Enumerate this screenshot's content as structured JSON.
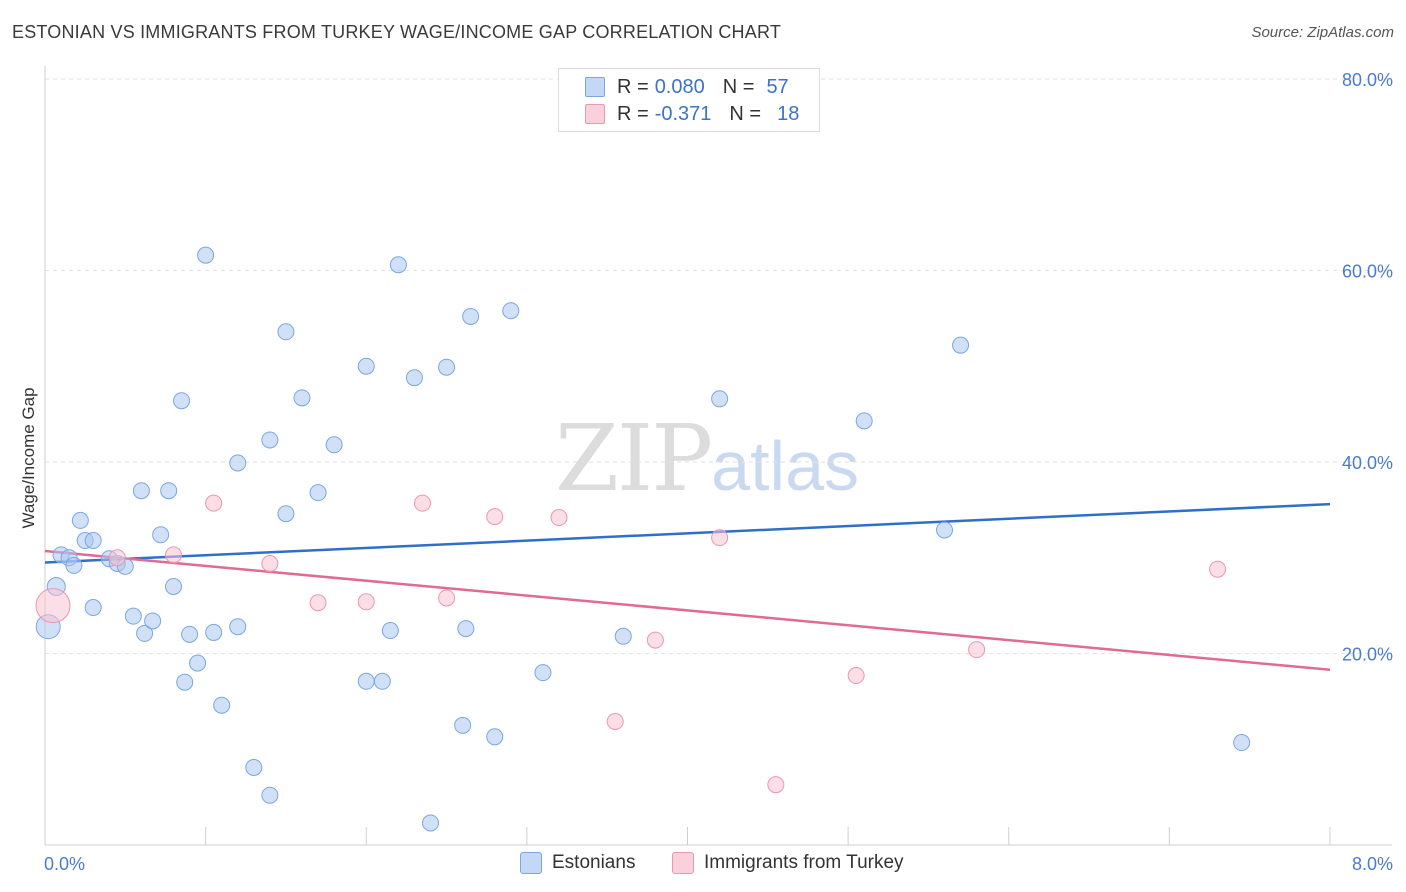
{
  "title": "ESTONIAN VS IMMIGRANTS FROM TURKEY WAGE/INCOME GAP CORRELATION CHART",
  "source": "Source: ZipAtlas.com",
  "watermark": {
    "zip": "ZIP",
    "atlas": "atlas"
  },
  "legend": {
    "rows": [
      {
        "r_label": "R =",
        "r_value": "0.080",
        "n_label": "N =",
        "n_value": "57",
        "color": "#a9c7f0",
        "border": "#7aa6e3"
      },
      {
        "r_label": "R =",
        "r_value": "-0.371",
        "n_label": "N =",
        "n_value": "18",
        "color": "#f7c2d2",
        "border": "#ec96b2"
      }
    ]
  },
  "bottom_legend": [
    {
      "label": "Estonians",
      "color": "#c2d8f4",
      "border": "#7aa6e3"
    },
    {
      "label": "Immigrants from Turkey",
      "color": "#f9d0dc",
      "border": "#ec96b2"
    }
  ],
  "chart_data": {
    "type": "scatter",
    "title": "ESTONIAN VS IMMIGRANTS FROM TURKEY WAGE/INCOME GAP CORRELATION CHART",
    "xlabel": "",
    "ylabel": "Wage/Income Gap",
    "xlim": [
      0,
      8
    ],
    "ylim": [
      0,
      80
    ],
    "x_tick_labels": [
      "0.0%",
      "8.0%"
    ],
    "y_ticks": [
      20,
      40,
      60,
      80
    ],
    "y_tick_labels": [
      "20.0%",
      "40.0%",
      "60.0%",
      "80.0%"
    ],
    "series": [
      {
        "name": "Estonians",
        "color": "#a9c7f0",
        "stroke": "#7aa6e3",
        "trend": {
          "x": [
            0,
            8
          ],
          "y": [
            29.5,
            35.6
          ],
          "color": "#2f6fc9"
        },
        "points": [
          [
            0.02,
            22.8,
            24
          ],
          [
            0.07,
            27,
            18
          ],
          [
            0.1,
            30.3,
            16
          ],
          [
            0.15,
            30,
            16
          ],
          [
            0.18,
            29.2,
            16
          ],
          [
            0.22,
            33.9,
            16
          ],
          [
            0.25,
            31.8,
            16
          ],
          [
            0.3,
            31.8,
            16
          ],
          [
            0.3,
            24.8,
            16
          ],
          [
            0.4,
            29.9,
            16
          ],
          [
            0.45,
            29.4,
            16
          ],
          [
            0.5,
            29.1,
            16
          ],
          [
            0.55,
            23.9,
            16
          ],
          [
            0.6,
            37,
            16
          ],
          [
            0.62,
            22.1,
            16
          ],
          [
            0.67,
            23.4,
            16
          ],
          [
            0.72,
            32.4,
            16
          ],
          [
            0.77,
            37,
            16
          ],
          [
            0.8,
            27,
            16
          ],
          [
            0.85,
            46.4,
            16
          ],
          [
            0.87,
            17,
            16
          ],
          [
            0.9,
            22,
            16
          ],
          [
            0.95,
            19,
            16
          ],
          [
            1.0,
            61.6,
            16
          ],
          [
            1.05,
            22.2,
            16
          ],
          [
            1.1,
            14.6,
            16
          ],
          [
            1.2,
            39.9,
            16
          ],
          [
            1.2,
            22.8,
            16
          ],
          [
            1.3,
            8.1,
            16
          ],
          [
            1.4,
            42.3,
            16
          ],
          [
            1.4,
            5.2,
            16
          ],
          [
            1.5,
            53.6,
            16
          ],
          [
            1.5,
            34.6,
            16
          ],
          [
            1.6,
            46.7,
            16
          ],
          [
            1.7,
            36.8,
            16
          ],
          [
            1.8,
            41.8,
            16
          ],
          [
            2.0,
            50,
            16
          ],
          [
            2.0,
            17.1,
            16
          ],
          [
            2.1,
            17.1,
            16
          ],
          [
            2.15,
            22.4,
            16
          ],
          [
            2.2,
            60.6,
            16
          ],
          [
            2.3,
            48.8,
            16
          ],
          [
            2.4,
            2.3,
            16
          ],
          [
            2.5,
            49.9,
            16
          ],
          [
            2.6,
            12.5,
            16
          ],
          [
            2.62,
            22.6,
            16
          ],
          [
            2.65,
            55.2,
            16
          ],
          [
            2.8,
            11.3,
            16
          ],
          [
            2.9,
            55.8,
            16
          ],
          [
            3.1,
            18,
            16
          ],
          [
            3.6,
            21.8,
            16
          ],
          [
            4.2,
            46.6,
            16
          ],
          [
            5.1,
            44.3,
            16
          ],
          [
            5.6,
            32.9,
            16
          ],
          [
            5.7,
            52.2,
            16
          ],
          [
            7.45,
            10.7,
            16
          ]
        ]
      },
      {
        "name": "Immigrants from Turkey",
        "color": "#f7c2d2",
        "stroke": "#ec96b2",
        "trend": {
          "x": [
            0,
            8
          ],
          "y": [
            30.7,
            18.3
          ],
          "color": "#e06a93"
        },
        "points": [
          [
            0.05,
            25,
            34
          ],
          [
            0.45,
            30,
            16
          ],
          [
            0.8,
            30.3,
            16
          ],
          [
            1.05,
            35.7,
            16
          ],
          [
            1.4,
            29.4,
            16
          ],
          [
            1.7,
            25.3,
            16
          ],
          [
            2.0,
            25.4,
            16
          ],
          [
            2.35,
            35.7,
            16
          ],
          [
            2.5,
            25.8,
            16
          ],
          [
            2.8,
            34.3,
            16
          ],
          [
            3.2,
            34.2,
            16
          ],
          [
            3.55,
            12.9,
            16
          ],
          [
            3.8,
            21.4,
            16
          ],
          [
            4.2,
            32.1,
            16
          ],
          [
            4.55,
            6.3,
            16
          ],
          [
            5.05,
            17.7,
            16
          ],
          [
            5.8,
            20.4,
            16
          ],
          [
            7.3,
            28.8,
            16
          ]
        ]
      }
    ]
  }
}
